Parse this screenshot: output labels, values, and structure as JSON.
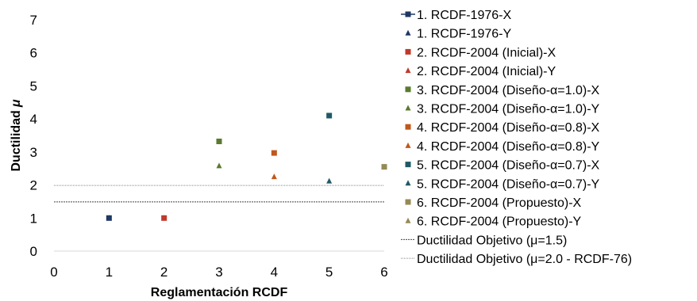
{
  "chart_data": {
    "type": "scatter",
    "xlabel": "Reglamentación RCDF",
    "ylabel_main": "Ductilidad",
    "ylabel_symbol": "μ",
    "xlim": [
      0,
      6
    ],
    "ylim": [
      0,
      7
    ],
    "x_ticks": [
      "0",
      "1",
      "2",
      "3",
      "4",
      "5",
      "6"
    ],
    "y_ticks": [
      "0",
      "1",
      "2",
      "3",
      "4",
      "5",
      "6",
      "7"
    ],
    "grid": false,
    "legend_position": "right",
    "series": [
      {
        "name": "1. RCDF-1976-X",
        "marker": "square",
        "color": "#1F3864",
        "x": 1,
        "y": 1.0,
        "legend_line": true
      },
      {
        "name": "1. RCDF-1976-Y",
        "marker": "triangle",
        "color": "#1F3864",
        "x": 1,
        "y": 1.0
      },
      {
        "name": "2. RCDF-2004 (Inicial)-X",
        "marker": "square",
        "color": "#C0392B",
        "x": 2,
        "y": 1.0
      },
      {
        "name": "2. RCDF-2004 (Inicial)-Y",
        "marker": "triangle",
        "color": "#C0392B",
        "x": 2,
        "y": 1.0
      },
      {
        "name": "3. RCDF-2004 (Diseño-α=1.0)-X",
        "marker": "square",
        "color": "#5A7A2E",
        "x": 3,
        "y": 3.32
      },
      {
        "name": "3. RCDF-2004 (Diseño-α=1.0)-Y",
        "marker": "triangle",
        "color": "#5A7A2E",
        "x": 3,
        "y": 2.58
      },
      {
        "name": "4. RCDF-2004 (Diseño-α=0.8)-X",
        "marker": "square",
        "color": "#C0571B",
        "x": 4,
        "y": 2.97
      },
      {
        "name": "4. RCDF-2004 (Diseño-α=0.8)-Y",
        "marker": "triangle",
        "color": "#C0571B",
        "x": 4,
        "y": 2.25
      },
      {
        "name": "5. RCDF-2004 (Diseño-α=0.7)-X",
        "marker": "square",
        "color": "#1E5A66",
        "x": 5,
        "y": 4.1
      },
      {
        "name": "5. RCDF-2004 (Diseño-α=0.7)-Y",
        "marker": "triangle",
        "color": "#1E5A66",
        "x": 5,
        "y": 2.12
      },
      {
        "name": "6. RCDF-2004 (Propuesto)-X",
        "marker": "square",
        "color": "#948A54",
        "x": 6,
        "y": 2.55
      },
      {
        "name": "6. RCDF-2004 (Propuesto)-Y",
        "marker": "triangle",
        "color": "#948A54",
        "x": 6,
        "y": 2.55
      }
    ],
    "reference_lines": [
      {
        "name": "Ductilidad Objetivo (μ=1.5)",
        "y": 1.5,
        "color": "#444444",
        "style": "dotted-dark"
      },
      {
        "name": "Ductilidad Objetivo (μ=2.0 - RCDF-76)",
        "y": 2.0,
        "color": "#888888",
        "style": "dotted-light"
      }
    ]
  }
}
